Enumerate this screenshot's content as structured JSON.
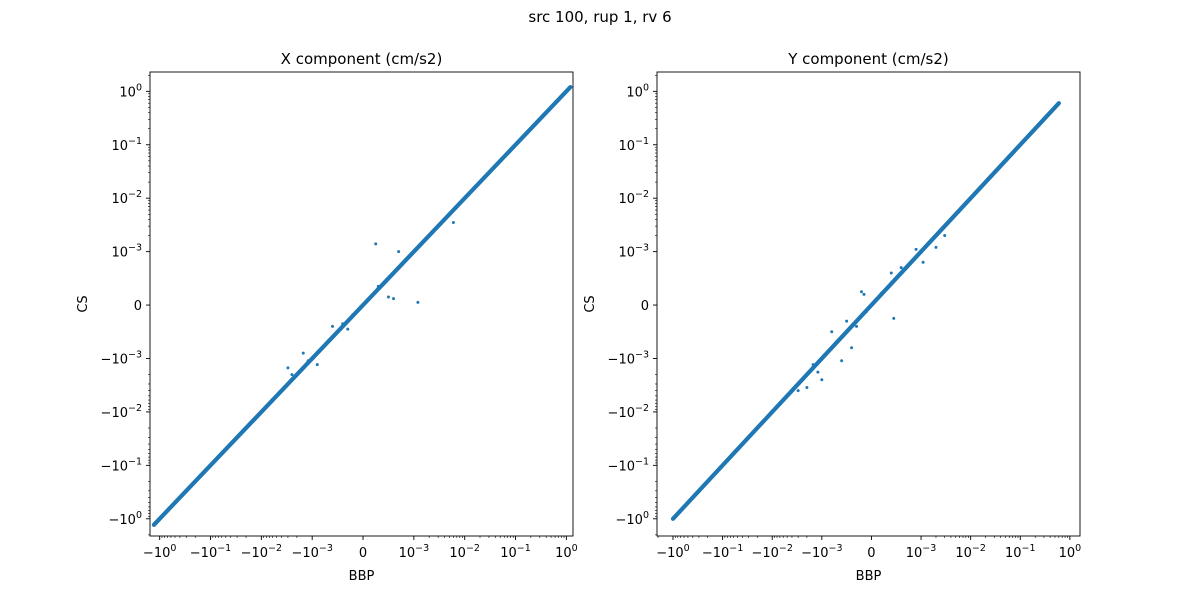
{
  "figure": {
    "title": "src 100, rup 1, rv 6",
    "point_color": "#1f77b4"
  },
  "chart_data": [
    {
      "type": "scatter",
      "title": "X component (cm/s2)",
      "xlabel": "BBP",
      "ylabel": "CS",
      "xscale": "symlog",
      "yscale": "symlog",
      "linthresh": 0.001,
      "xlim": [
        -1.55,
        1.35
      ],
      "ylim": [
        -2.1,
        2.3
      ],
      "xticks": [
        -1,
        -0.1,
        -0.01,
        -0.001,
        0,
        0.001,
        0.01,
        0.1,
        1
      ],
      "yticks": [
        -1,
        -0.1,
        -0.01,
        -0.001,
        0,
        0.001,
        0.01,
        0.1,
        1
      ],
      "xtick_labels": [
        "−1.0e0",
        "−1.0e-1",
        "−1.0e-2",
        "−1.0e-3",
        "0",
        "1.0e-3",
        "1.0e-2",
        "1.0e-1",
        "1.0e0"
      ],
      "ytick_labels": [
        "−1.0e0",
        "−1.0e-1",
        "−1.0e-2",
        "−1.0e-3",
        "0",
        "1.0e-3",
        "1.0e-2",
        "1.0e-1",
        "1.0e0"
      ],
      "grid": false,
      "main_trend": {
        "x_range": [
          -1.3,
          1.2
        ],
        "relation": "y = x"
      },
      "outliers": [
        {
          "x": 0.00025,
          "y": 0.0014
        },
        {
          "x": 0.0012,
          "y": 5e-05
        },
        {
          "x": 0.0007,
          "y": 0.001
        },
        {
          "x": 0.0005,
          "y": 0.00015
        },
        {
          "x": 0.0003,
          "y": 0.00035
        },
        {
          "x": 0.0006,
          "y": 0.00012
        },
        {
          "x": 0.006,
          "y": 0.0035
        },
        {
          "x": -0.0004,
          "y": -0.00035
        },
        {
          "x": -0.0003,
          "y": -0.00045
        },
        {
          "x": -0.0002,
          "y": -0.00018
        },
        {
          "x": -0.0012,
          "y": -0.0011
        },
        {
          "x": -0.0015,
          "y": -0.0009
        },
        {
          "x": -0.0009,
          "y": -0.0013
        },
        {
          "x": -0.003,
          "y": -0.0015
        },
        {
          "x": -0.0025,
          "y": -0.002
        },
        {
          "x": -0.0006,
          "y": -0.0004
        }
      ]
    },
    {
      "type": "scatter",
      "title": "Y component (cm/s2)",
      "xlabel": "BBP",
      "ylabel": "CS",
      "xscale": "symlog",
      "yscale": "symlog",
      "linthresh": 0.001,
      "xlim": [
        -2.1,
        1.6
      ],
      "ylim": [
        -2.1,
        2.3
      ],
      "xticks": [
        -1,
        -0.1,
        -0.01,
        -0.001,
        0,
        0.001,
        0.01,
        0.1,
        1
      ],
      "yticks": [
        -1,
        -0.1,
        -0.01,
        -0.001,
        0,
        0.001,
        0.01,
        0.1,
        1
      ],
      "xtick_labels": [
        "−1.0e0",
        "−1.0e-1",
        "−1.0e-2",
        "−1.0e-3",
        "0",
        "1.0e-3",
        "1.0e-2",
        "1.0e-1",
        "1.0e0"
      ],
      "ytick_labels": [
        "−1.0e0",
        "−1.0e-1",
        "−1.0e-2",
        "−1.0e-3",
        "0",
        "1.0e-3",
        "1.0e-2",
        "1.0e-1",
        "1.0e0"
      ],
      "grid": false,
      "main_trend": {
        "x_range": [
          -1.0,
          0.6
        ],
        "relation": "y = x"
      },
      "outliers": [
        {
          "x": -0.0002,
          "y": 0.00025
        },
        {
          "x": -0.00015,
          "y": 0.0002
        },
        {
          "x": 0.00045,
          "y": -0.00025
        },
        {
          "x": -0.0006,
          "y": -0.0011
        },
        {
          "x": -0.0004,
          "y": -0.0008
        },
        {
          "x": -0.001,
          "y": -0.0025
        },
        {
          "x": -0.0012,
          "y": -0.0018
        },
        {
          "x": -0.002,
          "y": -0.0035
        },
        {
          "x": -0.003,
          "y": -0.004
        },
        {
          "x": -0.0008,
          "y": -0.0005
        },
        {
          "x": -0.0003,
          "y": -0.0004
        },
        {
          "x": 0.0015,
          "y": 0.0015
        },
        {
          "x": 0.003,
          "y": 0.002
        },
        {
          "x": 0.002,
          "y": 0.0012
        },
        {
          "x": 0.0009,
          "y": 0.0011
        },
        {
          "x": 0.0006,
          "y": 0.0007
        },
        {
          "x": 0.0004,
          "y": 0.0006
        },
        {
          "x": 0.0002,
          "y": 0.00022
        },
        {
          "x": -0.0001,
          "y": -0.00012
        },
        {
          "x": -0.0015,
          "y": -0.0013
        },
        {
          "x": -0.0005,
          "y": -0.0003
        },
        {
          "x": 0.0011,
          "y": 0.0008
        }
      ]
    }
  ]
}
